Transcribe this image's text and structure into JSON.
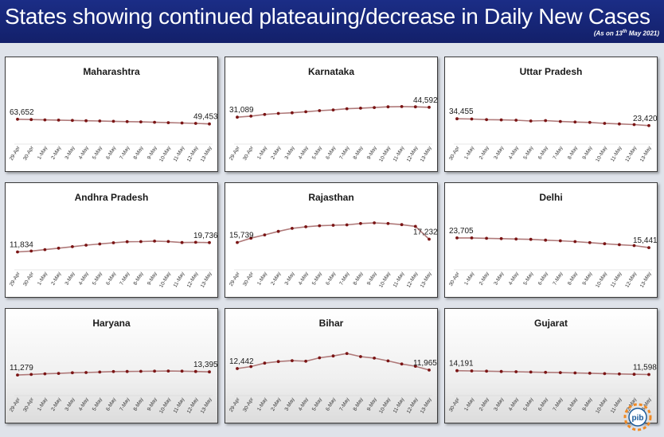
{
  "header": {
    "title": "States showing continued plateauing/decrease in Daily New Cases",
    "subtitle_prefix": "(As on 13",
    "subtitle_sup": "th",
    "subtitle_suffix": " May 2021)"
  },
  "colors": {
    "banner": "#1b2d86",
    "line": "#b07a7a",
    "marker": "#7a1414"
  },
  "logo": {
    "name": "pib-logo",
    "text": "pib"
  },
  "chart_data": [
    {
      "type": "line",
      "title": "Maharashtra",
      "categories": [
        "29-Apr",
        "30-Apr",
        "1-May",
        "2-May",
        "3-May",
        "4-May",
        "5-May",
        "6-May",
        "7-May",
        "8-May",
        "9-May",
        "10-May",
        "11-May",
        "12-May",
        "13-May"
      ],
      "values": [
        63652,
        62800,
        61900,
        61000,
        60100,
        59200,
        58400,
        57400,
        56500,
        55600,
        54500,
        53300,
        52200,
        51000,
        49453
      ],
      "data_labels": [
        {
          "i": 0,
          "text": "63,652"
        },
        {
          "i": 14,
          "text": "49,453"
        }
      ],
      "ylim": [
        0,
        180000
      ]
    },
    {
      "type": "line",
      "title": "Karnataka",
      "categories": [
        "29-Apr",
        "30-Apr",
        "1-May",
        "2-May",
        "3-May",
        "4-May",
        "5-May",
        "6-May",
        "7-May",
        "8-May",
        "9-May",
        "10-May",
        "11-May",
        "12-May",
        "13-May"
      ],
      "values": [
        31089,
        32500,
        34800,
        36200,
        37100,
        38500,
        40000,
        41000,
        42600,
        43400,
        44200,
        45200,
        45500,
        45200,
        44592
      ],
      "data_labels": [
        {
          "i": 0,
          "text": "31,089"
        },
        {
          "i": 14,
          "text": "44,592"
        }
      ],
      "ylim": [
        0,
        80000
      ]
    },
    {
      "type": "line",
      "title": "Uttar Pradesh",
      "categories": [
        "30-Apr",
        "1-May",
        "2-May",
        "3-May",
        "4-May",
        "5-May",
        "6-May",
        "7-May",
        "8-May",
        "9-May",
        "10-May",
        "11-May",
        "12-May",
        "13-May"
      ],
      "values": [
        34455,
        34000,
        33000,
        32600,
        32100,
        30800,
        31500,
        30000,
        29200,
        28500,
        27000,
        26000,
        25000,
        23420
      ],
      "data_labels": [
        {
          "i": 0,
          "text": "34,455"
        },
        {
          "i": 13,
          "text": "23,420"
        }
      ],
      "ylim": [
        0,
        95000
      ]
    },
    {
      "type": "line",
      "title": "Andhra Pradesh",
      "categories": [
        "29-Apr",
        "30-Apr",
        "1-May",
        "2-May",
        "3-May",
        "4-May",
        "5-May",
        "6-May",
        "7-May",
        "8-May",
        "9-May",
        "10-May",
        "11-May",
        "12-May",
        "13-May"
      ],
      "values": [
        11834,
        12600,
        13800,
        15000,
        16300,
        17600,
        18600,
        19600,
        20500,
        20600,
        21000,
        20700,
        19800,
        20000,
        19736
      ],
      "data_labels": [
        {
          "i": 0,
          "text": "11,834"
        },
        {
          "i": 14,
          "text": "19,736"
        }
      ],
      "ylim": [
        0,
        50000
      ]
    },
    {
      "type": "line",
      "title": "Rajasthan",
      "categories": [
        "29-Apr",
        "30-Apr",
        "1-May",
        "2-May",
        "3-May",
        "4-May",
        "5-May",
        "6-May",
        "7-May",
        "8-May",
        "9-May",
        "10-May",
        "11-May",
        "12-May",
        "13-May"
      ],
      "values": [
        15739,
        17700,
        19200,
        20800,
        22200,
        22900,
        23400,
        23600,
        23800,
        24400,
        24700,
        24400,
        23900,
        23100,
        17232
      ],
      "data_labels": [
        {
          "i": 0,
          "text": "15,739"
        },
        {
          "i": 14,
          "text": "17,232"
        }
      ],
      "ylim": [
        5000,
        32000
      ]
    },
    {
      "type": "line",
      "title": "Delhi",
      "categories": [
        "30-Apr",
        "1-May",
        "2-May",
        "3-May",
        "4-May",
        "5-May",
        "6-May",
        "7-May",
        "8-May",
        "9-May",
        "10-May",
        "11-May",
        "12-May",
        "13-May"
      ],
      "values": [
        23705,
        23700,
        23400,
        23100,
        22800,
        22500,
        21800,
        21300,
        20600,
        19700,
        18800,
        18000,
        17200,
        15441
      ],
      "data_labels": [
        {
          "i": 0,
          "text": "23,705"
        },
        {
          "i": 13,
          "text": "15,441"
        }
      ],
      "ylim": [
        0,
        50000
      ]
    },
    {
      "type": "line",
      "title": "Haryana",
      "categories": [
        "29-Apr",
        "30-Apr",
        "1-May",
        "2-May",
        "3-May",
        "4-May",
        "5-May",
        "6-May",
        "7-May",
        "8-May",
        "9-May",
        "10-May",
        "11-May",
        "12-May",
        "13-May"
      ],
      "values": [
        11279,
        11700,
        12100,
        12400,
        12800,
        13000,
        13300,
        13600,
        13700,
        13800,
        13900,
        14000,
        13900,
        13700,
        13395
      ],
      "data_labels": [
        {
          "i": 0,
          "text": "11,279"
        },
        {
          "i": 14,
          "text": "13,395"
        }
      ],
      "ylim": [
        0,
        40000
      ]
    },
    {
      "type": "line",
      "title": "Bihar",
      "categories": [
        "29-Apr",
        "30-Apr",
        "1-May",
        "2-May",
        "3-May",
        "4-May",
        "5-May",
        "6-May",
        "7-May",
        "8-May",
        "9-May",
        "10-May",
        "11-May",
        "12-May",
        "13-May"
      ],
      "values": [
        12442,
        13100,
        14200,
        14700,
        15000,
        14800,
        15900,
        16500,
        17300,
        16300,
        15800,
        14900,
        13900,
        13200,
        11965
      ],
      "data_labels": [
        {
          "i": 0,
          "text": "12,442"
        },
        {
          "i": 14,
          "text": "11,965"
        }
      ],
      "ylim": [
        5000,
        24000
      ]
    },
    {
      "type": "line",
      "title": "Gujarat",
      "categories": [
        "30-Apr",
        "1-May",
        "2-May",
        "3-May",
        "4-May",
        "5-May",
        "6-May",
        "7-May",
        "8-May",
        "9-May",
        "10-May",
        "11-May",
        "12-May",
        "13-May"
      ],
      "values": [
        14191,
        14050,
        13900,
        13700,
        13500,
        13300,
        13100,
        12900,
        12700,
        12500,
        12200,
        12000,
        11800,
        11598
      ],
      "data_labels": [
        {
          "i": 0,
          "text": "14,191"
        },
        {
          "i": 13,
          "text": "11,598"
        }
      ],
      "ylim": [
        0,
        40000
      ]
    }
  ]
}
